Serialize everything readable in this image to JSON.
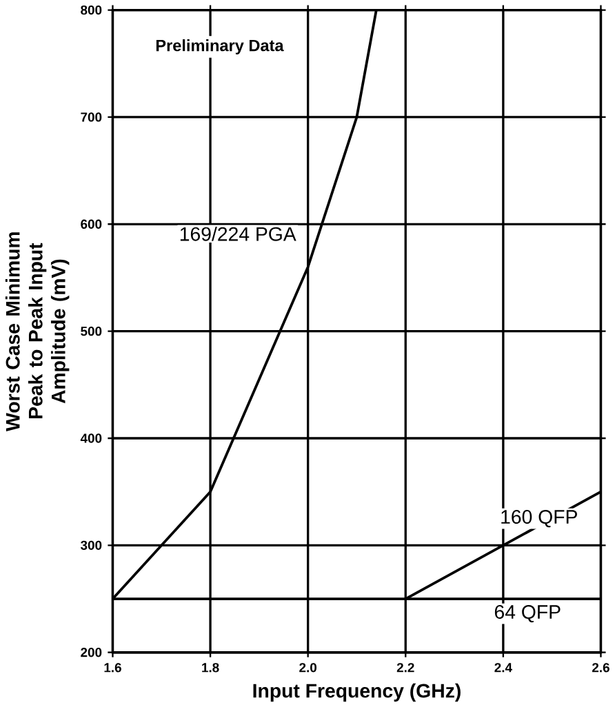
{
  "chart_data": {
    "type": "line",
    "xlabel": "Input Frequency (GHz)",
    "ylabel": "Worst Case Minimum Peak to Peak Input Amplitude (mV)",
    "annotations": [
      "Preliminary Data"
    ],
    "series": [
      {
        "name": "169/224 PGA",
        "color": "#000000",
        "x": [
          1.6,
          1.8,
          2.0,
          2.1,
          2.14
        ],
        "values": [
          250,
          350,
          560,
          700,
          800
        ]
      },
      {
        "name": "160 QFP",
        "color": "#000000",
        "x": [
          2.2,
          2.6
        ],
        "values": [
          250,
          350
        ]
      },
      {
        "name": "64 QFP",
        "color": "#000000",
        "x": [
          1.6,
          2.6
        ],
        "values": [
          250,
          250
        ]
      }
    ],
    "xlim": [
      1.6,
      2.6
    ],
    "xticks": [
      1.6,
      1.8,
      {
        "value": 2,
        "label": "2.0"
      },
      2.2,
      2.4,
      2.6
    ],
    "ylim": [
      200,
      800
    ],
    "yticks": [
      200,
      300,
      400,
      500,
      600,
      700,
      800
    ],
    "grid": true,
    "legend": false,
    "marker": "none",
    "line_style": "solid"
  }
}
